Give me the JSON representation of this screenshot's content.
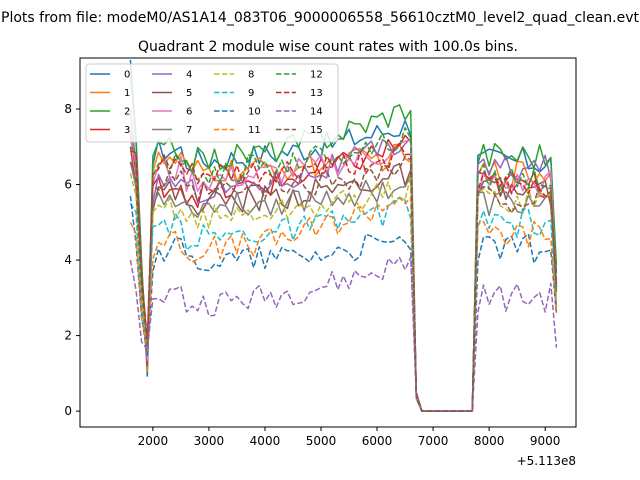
{
  "suptitle": "Plots from file: modeM0/AS1A14_083T06_9000006558_56610cztM0_level2_quad_clean.evt",
  "chart_data": {
    "type": "line",
    "title": "Quadrant 2 module wise count rates with 100.0s bins.",
    "xlabel": "",
    "ylabel": "",
    "x_offset_label": "+5.113e8",
    "xlim": [
      700,
      9550
    ],
    "ylim": [
      -0.42,
      9.35
    ],
    "xticks": [
      2000,
      3000,
      4000,
      5000,
      6000,
      7000,
      8000,
      9000
    ],
    "xtick_labels": [
      "2000",
      "3000",
      "4000",
      "5000",
      "6000",
      "7000",
      "8000",
      "9000"
    ],
    "yticks": [
      0,
      2,
      4,
      6,
      8
    ],
    "ytick_labels": [
      "0",
      "2",
      "4",
      "6",
      "8"
    ],
    "grid": false,
    "legend_position": "top-left",
    "legend_columns": 4,
    "segments": [
      {
        "start": 1600,
        "end": 6700,
        "step": 100,
        "dip_at": [
          1800,
          1900
        ]
      },
      {
        "start": 6700,
        "end": 7700,
        "step": 100,
        "zero": true
      },
      {
        "start": 7700,
        "end": 9200,
        "step": 100
      }
    ],
    "series": [
      {
        "name": "0",
        "color": "#1f77b4",
        "dash": "solid",
        "level": 6.6,
        "end_level": 7.6,
        "seg2_level": 6.6,
        "start_value": 9.3
      },
      {
        "name": "1",
        "color": "#ff7f0e",
        "dash": "solid",
        "level": 6.3,
        "end_level": 6.8,
        "seg2_level": 6.3,
        "start_value": 7.2
      },
      {
        "name": "2",
        "color": "#2ca02c",
        "dash": "solid",
        "level": 6.6,
        "end_level": 8.1,
        "seg2_level": 6.8,
        "start_value": 9.0
      },
      {
        "name": "3",
        "color": "#d62728",
        "dash": "solid",
        "level": 5.7,
        "end_level": 7.2,
        "seg2_level": 6.0,
        "start_value": 7.4
      },
      {
        "name": "4",
        "color": "#9467bd",
        "dash": "solid",
        "level": 5.8,
        "end_level": 7.2,
        "seg2_level": 6.4,
        "start_value": 8.0
      },
      {
        "name": "5",
        "color": "#8c564b",
        "dash": "solid",
        "level": 5.5,
        "end_level": 6.3,
        "seg2_level": 5.8,
        "start_value": 7.0
      },
      {
        "name": "6",
        "color": "#e377c2",
        "dash": "solid",
        "level": 6.1,
        "end_level": 7.0,
        "seg2_level": 6.0,
        "start_value": 7.2
      },
      {
        "name": "7",
        "color": "#7f7f7f",
        "dash": "solid",
        "level": 5.4,
        "end_level": 6.0,
        "seg2_level": 5.5,
        "start_value": 6.6
      },
      {
        "name": "8",
        "color": "#bcbd22",
        "dash": "dashed",
        "level": 5.1,
        "end_level": 5.9,
        "seg2_level": 5.6,
        "start_value": 6.3
      },
      {
        "name": "9",
        "color": "#17becf",
        "dash": "dashed",
        "level": 4.6,
        "end_level": 5.4,
        "seg2_level": 5.0,
        "start_value": 5.5
      },
      {
        "name": "10",
        "color": "#1f77b4",
        "dash": "dashed",
        "level": 4.0,
        "end_level": 4.5,
        "seg2_level": 4.3,
        "start_value": 5.7
      },
      {
        "name": "11",
        "color": "#ff7f0e",
        "dash": "dashed",
        "level": 4.2,
        "end_level": 5.8,
        "seg2_level": 4.7,
        "start_value": 5.0
      },
      {
        "name": "12",
        "color": "#2ca02c",
        "dash": "dashed",
        "level": 6.3,
        "end_level": 7.3,
        "seg2_level": 6.2,
        "start_value": 7.0
      },
      {
        "name": "13",
        "color": "#d62728",
        "dash": "dashed",
        "level": 6.2,
        "end_level": 6.8,
        "seg2_level": 6.0,
        "start_value": 6.9
      },
      {
        "name": "14",
        "color": "#9467bd",
        "dash": "dashed",
        "level": 2.8,
        "end_level": 4.0,
        "seg2_level": 3.0,
        "start_value": 4.0
      },
      {
        "name": "15",
        "color": "#8c564b",
        "dash": "dashed",
        "level": 5.7,
        "end_level": 6.5,
        "seg2_level": 5.6,
        "start_value": 6.6
      }
    ]
  }
}
